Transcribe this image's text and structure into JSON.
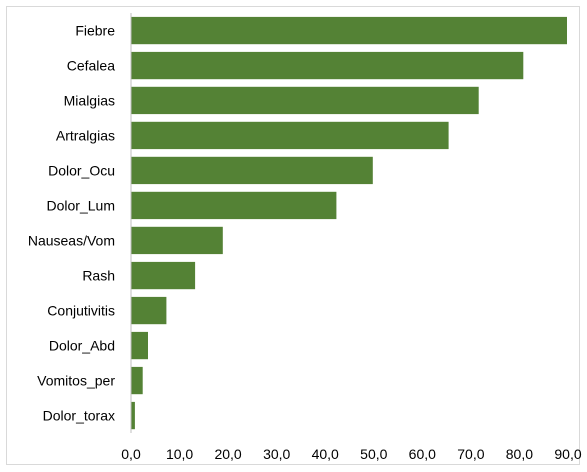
{
  "chart_data": {
    "type": "bar",
    "orientation": "horizontal",
    "categories": [
      "Fiebre",
      "Cefalea",
      "Mialgias",
      "Artralgias",
      "Dolor_Ocu",
      "Dolor_Lum",
      "Nauseas/Vom",
      "Rash",
      "Conjutivitis",
      "Dolor_Abd",
      "Vomitos_per",
      "Dolor_torax"
    ],
    "values": [
      89.8,
      80.8,
      71.6,
      65.4,
      49.8,
      42.3,
      18.9,
      13.2,
      7.3,
      3.5,
      2.4,
      0.8
    ],
    "xlim": [
      0,
      90
    ],
    "xticks": [
      0,
      10,
      20,
      30,
      40,
      50,
      60,
      70,
      80,
      90
    ],
    "xtick_labels": [
      "0,0",
      "10,0",
      "20,0",
      "30,0",
      "40,0",
      "50,0",
      "60,0",
      "70,0",
      "80,0",
      "90,0"
    ],
    "title": "",
    "xlabel": "",
    "ylabel": "",
    "grid": false,
    "legend": "none",
    "bar_color": "#548235",
    "axis_color": "#bfbfbf"
  }
}
